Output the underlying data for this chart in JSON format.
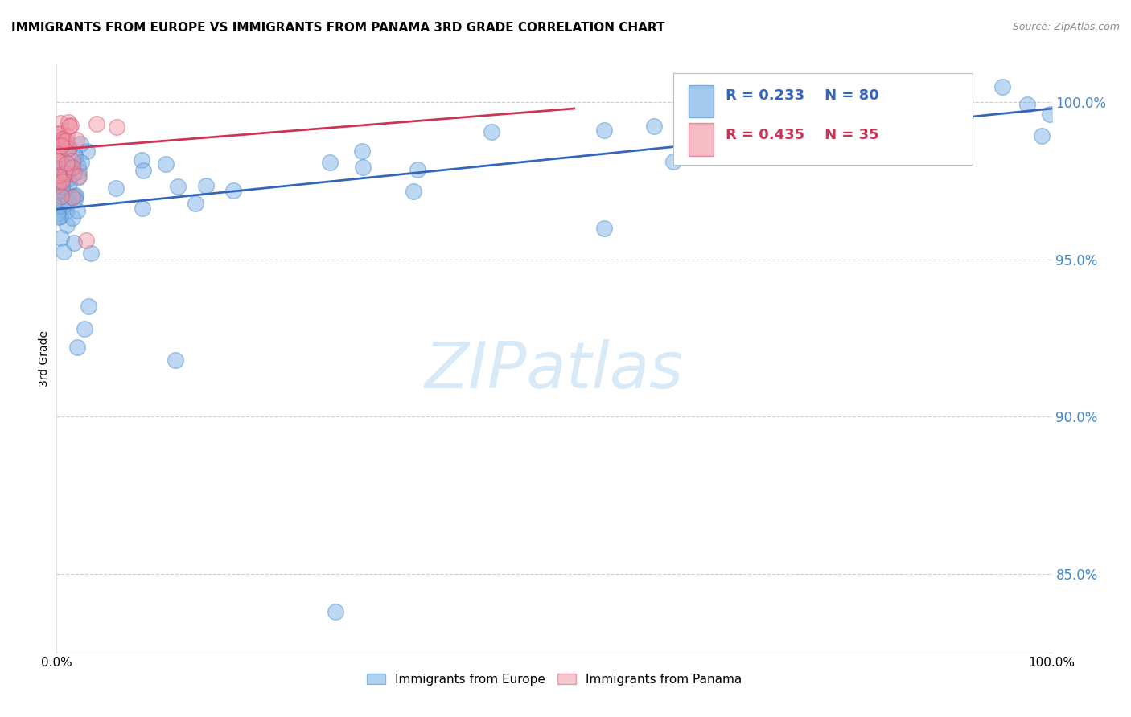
{
  "title": "IMMIGRANTS FROM EUROPE VS IMMIGRANTS FROM PANAMA 3RD GRADE CORRELATION CHART",
  "source": "Source: ZipAtlas.com",
  "ylabel": "3rd Grade",
  "legend_label_blue": "Immigrants from Europe",
  "legend_label_pink": "Immigrants from Panama",
  "blue_r": "0.233",
  "blue_n": "80",
  "pink_r": "0.435",
  "pink_n": "35",
  "blue_scatter_color": "#7EB3E8",
  "blue_edge_color": "#5090CC",
  "pink_scatter_color": "#F090A0",
  "pink_edge_color": "#D05070",
  "blue_line_color": "#3366BB",
  "pink_line_color": "#CC3355",
  "ytick_color": "#4488CC",
  "xlim": [
    0.0,
    1.0
  ],
  "ylim": [
    0.825,
    1.012
  ],
  "yticks": [
    0.85,
    0.9,
    0.95,
    1.0
  ],
  "watermark_color": "#D8EAF8",
  "grid_color": "#CCCCCC",
  "blue_line_start_y": 0.966,
  "blue_line_end_y": 0.998,
  "pink_line_start_y": 0.985,
  "pink_line_end_y": 0.998,
  "pink_line_end_x": 0.52
}
